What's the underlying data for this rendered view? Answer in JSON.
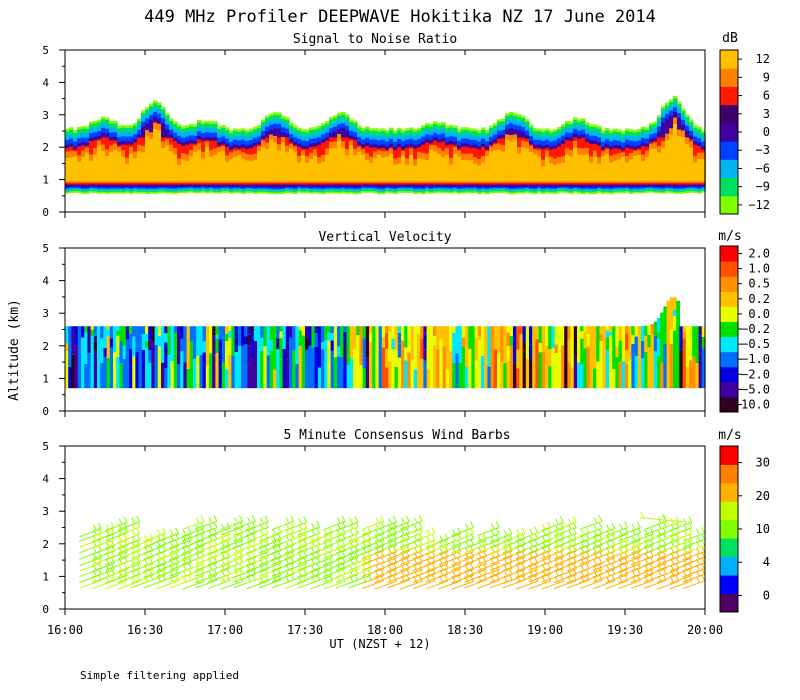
{
  "title": "449 MHz Profiler DEEPWAVE Hokitika NZ 17 June 2014",
  "y_axis_label": "Altitude (km)",
  "x_axis_label": "UT  (NZST + 12)",
  "footnote": "Simple filtering applied",
  "x_ticks": [
    "16:00",
    "16:30",
    "17:00",
    "17:30",
    "18:00",
    "18:30",
    "19:00",
    "19:30",
    "20:00"
  ],
  "y_ticks": [
    "0",
    "1",
    "2",
    "3",
    "4",
    "5"
  ],
  "colors": {
    "snr_scale": [
      "#80ff00",
      "#00e060",
      "#00b4f0",
      "#0040ff",
      "#4000a0",
      "#40006a",
      "#ff1800",
      "#ff8000",
      "#ffc000"
    ],
    "velocity_scale": [
      "#300020",
      "#4000a0",
      "#0000e0",
      "#0070ff",
      "#00e8ff",
      "#00e000",
      "#e8ff00",
      "#ffc000",
      "#ff9000",
      "#ff5000",
      "#ff0000"
    ],
    "wind_scale": [
      "#500060",
      "#0000ff",
      "#00b0ff",
      "#00e060",
      "#80ff00",
      "#c0ff00",
      "#ffb000",
      "#ff8000",
      "#ff0000"
    ]
  },
  "chart_data": [
    {
      "type": "heatmap",
      "title": "Signal to Noise Ratio",
      "units": "dB",
      "colorbar_ticks": [
        "12",
        "9",
        "6",
        "3",
        "0",
        "−3",
        "−6",
        "−9",
        "−12"
      ],
      "xlabel": "UT (NZST + 12)",
      "ylabel": "Altitude (km)",
      "xlim": [
        "16:00",
        "20:00"
      ],
      "ylim": [
        0,
        5
      ],
      "description_values": {
        "layer_bottom_km": 0.55,
        "layer_top_km_typical": 2.6,
        "peaks": [
          {
            "time": "16:30",
            "top_km": 3.6
          },
          {
            "time": "19:50",
            "top_km": 3.7
          }
        ]
      }
    },
    {
      "type": "heatmap",
      "title": "Vertical Velocity",
      "units": "m/s",
      "colorbar_ticks": [
        "2.0",
        "1.0",
        "0.5",
        "0.2",
        "0.0",
        "−0.2",
        "−0.5",
        "−1.0",
        "−2.0",
        "−5.0",
        "−10.0"
      ],
      "xlabel": "UT (NZST + 12)",
      "ylabel": "Altitude (km)",
      "xlim": [
        "16:00",
        "20:00"
      ],
      "ylim": [
        0,
        5
      ],
      "description_values": {
        "data_bottom_km": 0.7,
        "data_top_km_typical": 2.6,
        "peak": {
          "time": "19:50",
          "top_km": 3.5
        }
      }
    },
    {
      "type": "scatter",
      "title": "5 Minute Consensus Wind Barbs",
      "units": "m/s",
      "colorbar_ticks": [
        "30",
        "20",
        "10",
        "4",
        "0"
      ],
      "xlabel": "UT (NZST + 12)",
      "ylabel": "Altitude (km)",
      "xlim": [
        "16:00",
        "20:00"
      ],
      "ylim": [
        0,
        5
      ],
      "description_values": {
        "barb_altitude_range_km": [
          0.5,
          2.5
        ],
        "typical_speed_ms": [
          10,
          20
        ],
        "isolated_barbs": {
          "time": "19:40",
          "altitude_km": 2.8
        }
      }
    }
  ]
}
